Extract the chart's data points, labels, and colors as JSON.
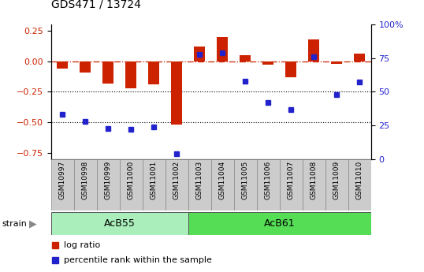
{
  "title": "GDS471 / 13724",
  "samples": [
    "GSM10997",
    "GSM10998",
    "GSM10999",
    "GSM11000",
    "GSM11001",
    "GSM11002",
    "GSM11003",
    "GSM11004",
    "GSM11005",
    "GSM11006",
    "GSM11007",
    "GSM11008",
    "GSM11009",
    "GSM11010"
  ],
  "log_ratio": [
    -0.06,
    -0.09,
    -0.18,
    -0.22,
    -0.19,
    -0.52,
    0.12,
    0.2,
    0.05,
    -0.03,
    -0.13,
    0.18,
    -0.02,
    0.06
  ],
  "percentile": [
    33,
    28,
    23,
    22,
    24,
    4,
    78,
    79,
    58,
    42,
    37,
    76,
    48,
    57
  ],
  "ylim_left": [
    -0.8,
    0.3
  ],
  "ylim_right": [
    0,
    100
  ],
  "dotted_lines": [
    -0.25,
    -0.5
  ],
  "bar_color": "#cc2200",
  "dot_color": "#2222cc",
  "strain_groups": [
    {
      "label": "AcB55",
      "start": 0,
      "end": 6,
      "color": "#aaeebb"
    },
    {
      "label": "AcB61",
      "start": 6,
      "end": 14,
      "color": "#55dd55"
    }
  ],
  "xtick_bg": "#cccccc",
  "legend_labels": [
    "log ratio",
    "percentile rank within the sample"
  ],
  "left_label_color": "#cc2200",
  "right_label_color": "#2222cc",
  "left_yticks": [
    0.25,
    0.0,
    -0.25,
    -0.5,
    -0.75
  ],
  "right_yticks": [
    0,
    25,
    50,
    75,
    100
  ],
  "right_yticklabels": [
    "0",
    "25",
    "50",
    "75",
    "100%"
  ]
}
